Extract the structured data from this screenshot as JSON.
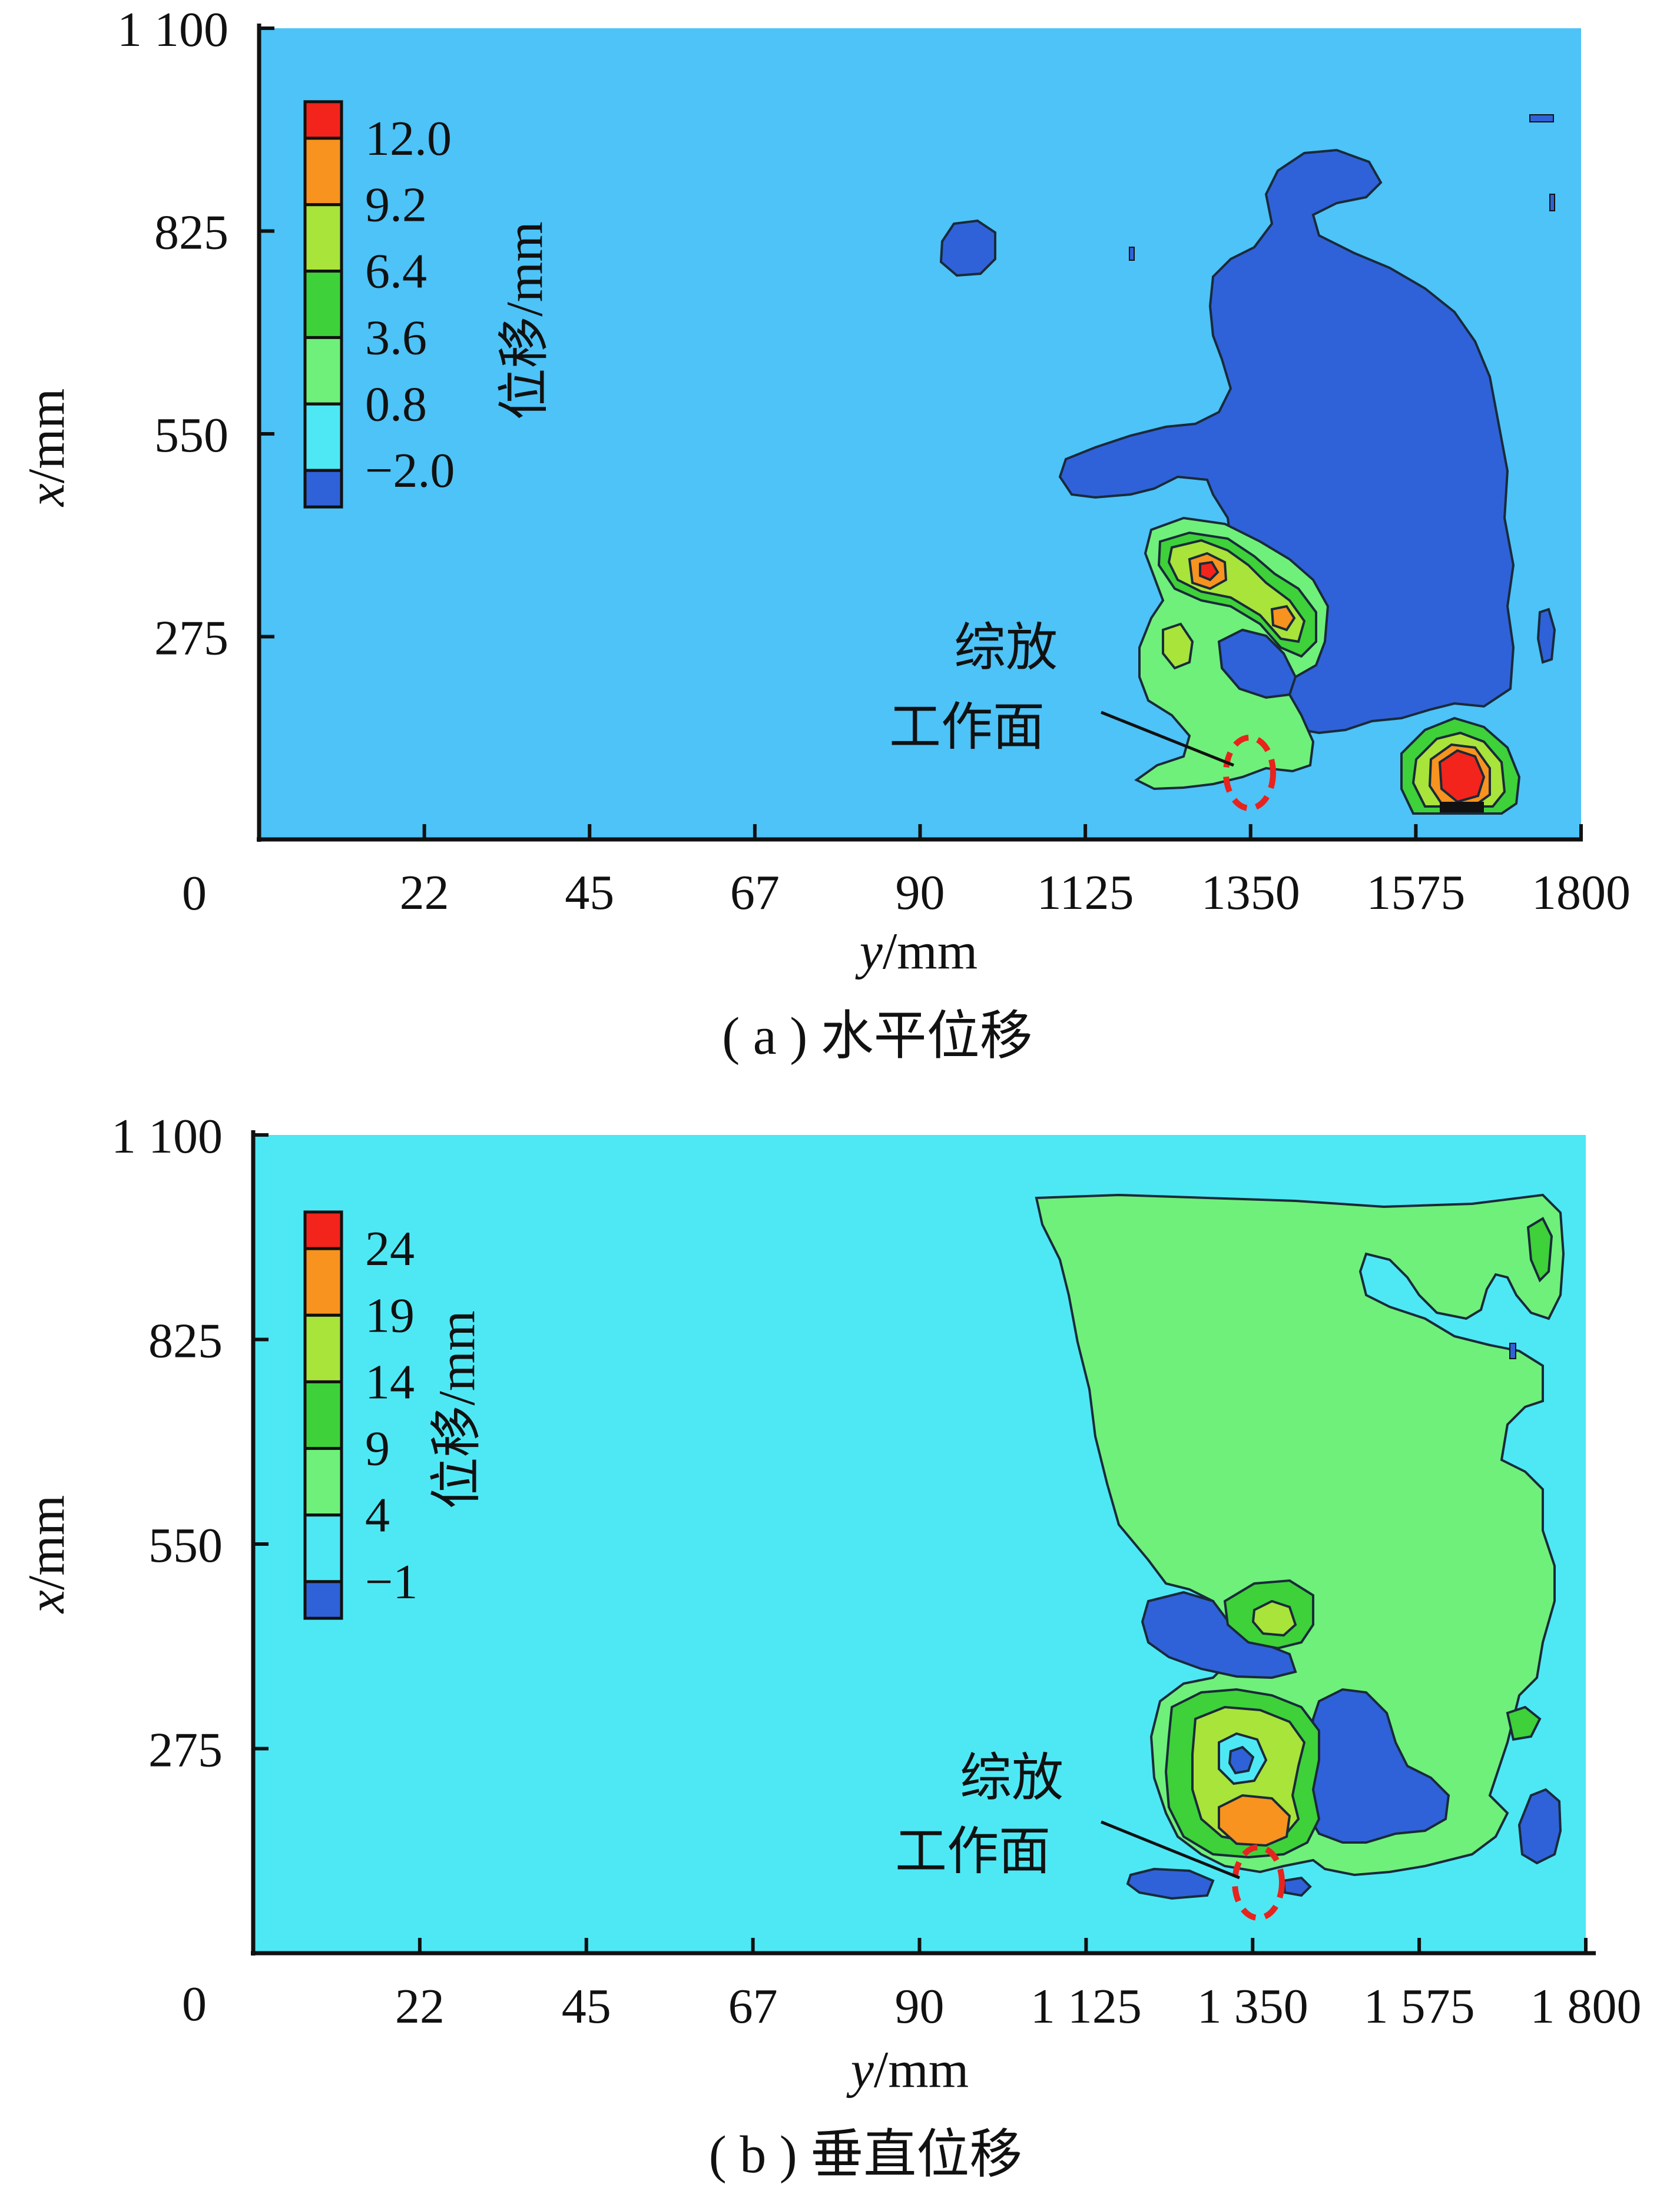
{
  "chart_data": [
    {
      "type": "heatmap",
      "caption": "( a ) 水平位移",
      "xlabel_var": "y",
      "xlabel_unit": "/mm",
      "ylabel_var": "x",
      "ylabel_unit": "/mm",
      "origin_label": "0",
      "x_ticks": [
        "22",
        "45",
        "67",
        "90",
        "1125",
        "1350",
        "1575",
        "1800"
      ],
      "y_ticks": [
        "1 100",
        "825",
        "550",
        "275"
      ],
      "colorbar_title": "位移/mm",
      "colorbar_labels": [
        "12.0",
        "9.2",
        "6.4",
        "3.6",
        "0.8",
        "−2.0"
      ],
      "colorbar_colors": [
        "#f2241b",
        "#f7931e",
        "#a8e43a",
        "#3ed13a",
        "#6ff07a",
        "#4ee8f5",
        "#2f62d8"
      ],
      "background_color": "#4dc3f7",
      "annotation": {
        "line1": "综放",
        "line2": "工作面"
      }
    },
    {
      "type": "heatmap",
      "caption": "( b ) 垂直位移",
      "xlabel_var": "y",
      "xlabel_unit": "/mm",
      "ylabel_var": "x",
      "ylabel_unit": "/mm",
      "origin_label": "0",
      "x_ticks": [
        "22",
        "45",
        "67",
        "90",
        "1 125",
        "1 350",
        "1 575",
        "1 800"
      ],
      "y_ticks": [
        "1 100",
        "825",
        "550",
        "275"
      ],
      "colorbar_title": "位移/mm",
      "colorbar_labels": [
        "24",
        "19",
        "14",
        "9",
        "4",
        "−1"
      ],
      "colorbar_colors": [
        "#f2241b",
        "#f7931e",
        "#a8e43a",
        "#3ed13a",
        "#6ff07a",
        "#4ee8f5",
        "#2f62d8"
      ],
      "background_color": "#4ee8f5",
      "annotation": {
        "line1": "综放",
        "line2": "工作面"
      }
    }
  ]
}
